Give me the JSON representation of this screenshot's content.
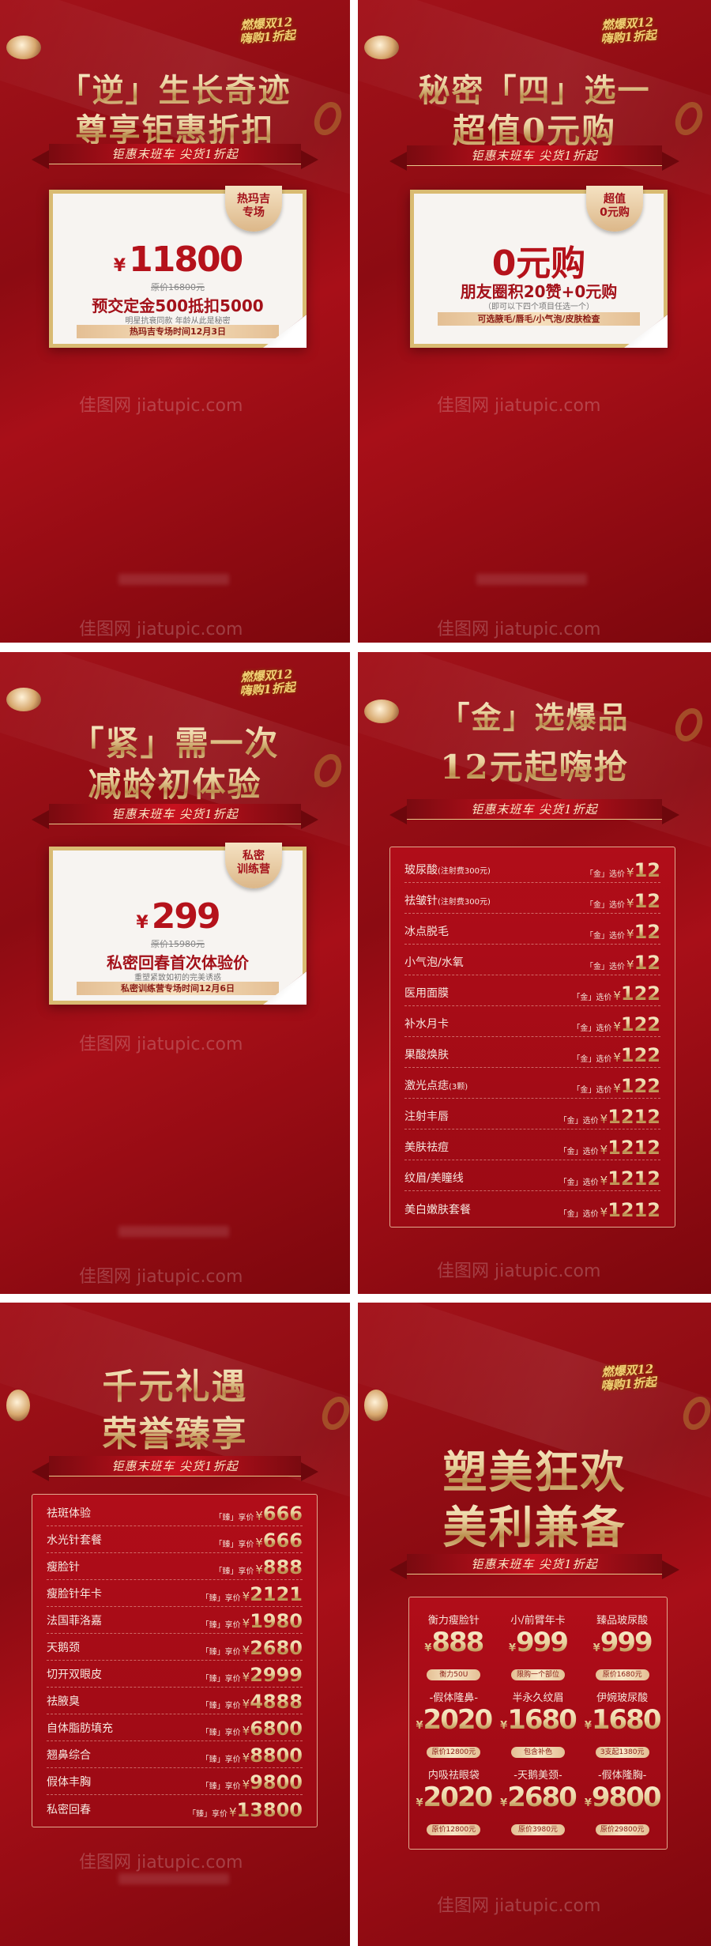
{
  "common": {
    "logo_line1": "燃爆双12",
    "logo_line2": "嗨购1折起",
    "ribbon": "钜惠末班车 尖货1折起",
    "watermark": "佳图网 jiatupic.com"
  },
  "colors": {
    "background_red": "#9b0a14",
    "gold": "#e8cf9a",
    "price_red": "#b5121b"
  },
  "panels": [
    {
      "title_line1": "「逆」生长奇迹",
      "title_line2": "尊享钜惠折扣",
      "badge": [
        "热玛吉",
        "专场"
      ],
      "price_symbol": "¥",
      "price": "11800",
      "original_price": "原价16800元",
      "headline": "预交定金500抵扣5000",
      "subline": "明星抗衰同款 年龄从此是秘密",
      "bar": "热玛吉专场时间12月3日"
    },
    {
      "title_line1": "秘密「四」选一",
      "title_line2": "超值0元购",
      "badge": [
        "超值",
        "0元购"
      ],
      "price": "0元购",
      "headline": "朋友圈积20赞+0元购",
      "subline": "（即可以下四个项目任选一个）",
      "bar": "可选腋毛/唇毛/小气泡/皮肤检查"
    },
    {
      "title_line1": "「紧」需一次",
      "title_line2": "减龄初体验",
      "badge": [
        "私密",
        "训练营"
      ],
      "price_symbol": "¥",
      "price": "299",
      "original_price": "原价15980元",
      "headline": "私密回春首次体验价",
      "subline": "重塑紧致如初的完美诱惑",
      "bar": "私密训练营专场时间12月6日"
    },
    {
      "title_line1": "「金」选爆品",
      "title_line2": "12元起嗨抢",
      "tag": "「金」选价",
      "currency": "¥",
      "items": [
        {
          "name": "玻尿酸",
          "note": "(注射费300元)",
          "price": "12"
        },
        {
          "name": "祛皱针",
          "note": "(注射费300元)",
          "price": "12"
        },
        {
          "name": "冰点脱毛",
          "note": "",
          "price": "12"
        },
        {
          "name": "小气泡/水氧",
          "note": "",
          "price": "12"
        },
        {
          "name": "医用面膜",
          "note": "",
          "price": "122"
        },
        {
          "name": "补水月卡",
          "note": "",
          "price": "122"
        },
        {
          "name": "果酸焕肤",
          "note": "",
          "price": "122"
        },
        {
          "name": "激光点痣",
          "note": "(3颗)",
          "price": "122"
        },
        {
          "name": "注射丰唇",
          "note": "",
          "price": "1212"
        },
        {
          "name": "美肤祛痘",
          "note": "",
          "price": "1212"
        },
        {
          "name": "纹眉/美瞳线",
          "note": "",
          "price": "1212"
        },
        {
          "name": "美白嫩肤套餐",
          "note": "",
          "price": "1212"
        }
      ]
    },
    {
      "title_line1": "千元礼遇",
      "title_line2": "荣誉臻享",
      "tag": "「臻」享价",
      "currency": "¥",
      "items": [
        {
          "name": "祛斑体验",
          "price": "666"
        },
        {
          "name": "水光针套餐",
          "price": "666"
        },
        {
          "name": "瘦脸针",
          "price": "888"
        },
        {
          "name": "瘦脸针年卡",
          "price": "2121"
        },
        {
          "name": "法国菲洛嘉",
          "price": "1980"
        },
        {
          "name": "天鹅颈",
          "price": "2680"
        },
        {
          "name": "切开双眼皮",
          "price": "2999"
        },
        {
          "name": "祛腋臭",
          "price": "4888"
        },
        {
          "name": "自体脂肪填充",
          "price": "6800"
        },
        {
          "name": "翘鼻综合",
          "price": "8800"
        },
        {
          "name": "假体丰胸",
          "price": "9800"
        },
        {
          "name": "私密回春",
          "price": "13800"
        }
      ]
    },
    {
      "title_line1": "塑美狂欢",
      "title_line2": "美利兼备",
      "currency": "¥",
      "cells": [
        {
          "name": "衡力瘦脸针",
          "price": "888",
          "note": "衡力50U"
        },
        {
          "name": "小/前臂年卡",
          "price": "999",
          "note": "限购一个部位"
        },
        {
          "name": "臻品玻尿酸",
          "price": "999",
          "note": "原价1680元"
        },
        {
          "name": "-假体隆鼻-",
          "price": "2020",
          "note": "原价12800元"
        },
        {
          "name": "半永久纹眉",
          "price": "1680",
          "note": "包含补色"
        },
        {
          "name": "伊婉玻尿酸",
          "price": "1680",
          "note": "3支起1380元"
        },
        {
          "name": "内吸祛眼袋",
          "price": "2020",
          "note": "原价12800元"
        },
        {
          "name": "-天鹅美颈-",
          "price": "2680",
          "note": "原价3980元"
        },
        {
          "name": "-假体隆胸-",
          "price": "9800",
          "note": "原价29800元"
        }
      ]
    }
  ]
}
